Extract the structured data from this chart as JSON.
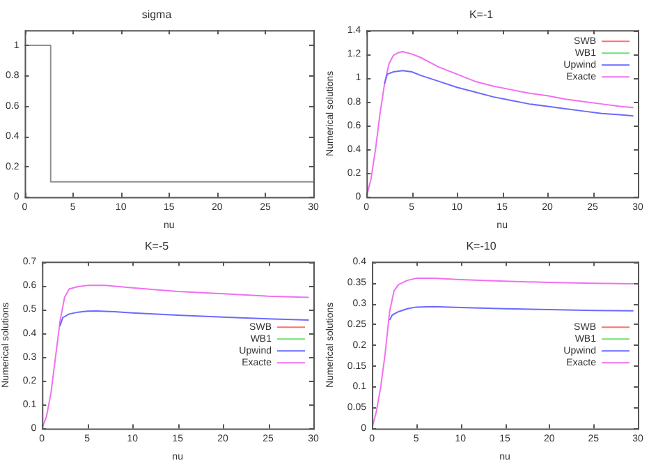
{
  "chart_data": [
    {
      "type": "step",
      "title": "sigma",
      "xlabel": "nu",
      "xlim": [
        0,
        30
      ],
      "xticks": [
        0,
        5,
        10,
        15,
        20,
        25,
        30
      ],
      "ylim": [
        0,
        1.1
      ],
      "yticks": [
        0,
        0.2,
        0.4,
        0.6,
        0.8,
        1
      ],
      "grid": false,
      "legend": false,
      "series": [
        {
          "color": "#909090",
          "x": [
            0,
            2.7,
            30
          ],
          "values": [
            1,
            0.1,
            0.1
          ]
        }
      ]
    },
    {
      "type": "line",
      "title": "K=-1",
      "xlabel": "nu",
      "ylabel": "Numerical solutions",
      "xlim": [
        0,
        30
      ],
      "xticks": [
        0,
        5,
        10,
        15,
        20,
        25,
        30
      ],
      "ylim": [
        0,
        1.4
      ],
      "yticks": [
        0,
        0.2,
        0.4,
        0.6,
        0.8,
        1,
        1.2,
        1.4
      ],
      "grid": false,
      "legend": "top right",
      "series": [
        {
          "name": "SWB",
          "color": "#ff7070"
        },
        {
          "name": "WB1",
          "color": "#70e070"
        },
        {
          "name": "Upwind",
          "color": "#6a6aff",
          "x": [
            2,
            2.3,
            3,
            4,
            5,
            6,
            8,
            10,
            12,
            14,
            16,
            18,
            20,
            22,
            24,
            26,
            28,
            29.5
          ],
          "values": [
            0.95,
            1.03,
            1.05,
            1.06,
            1.05,
            1.02,
            0.97,
            0.92,
            0.88,
            0.84,
            0.81,
            0.78,
            0.76,
            0.74,
            0.72,
            0.7,
            0.69,
            0.68
          ]
        },
        {
          "name": "Exacte",
          "color": "#f070f0",
          "x": [
            0,
            0.5,
            1,
            1.5,
            2,
            2.5,
            3,
            3.5,
            4,
            5,
            6,
            7,
            8,
            10,
            12,
            14,
            16,
            18,
            20,
            22,
            24,
            26,
            28,
            29.5
          ],
          "values": [
            0,
            0.15,
            0.4,
            0.7,
            0.95,
            1.12,
            1.19,
            1.21,
            1.22,
            1.2,
            1.17,
            1.13,
            1.09,
            1.03,
            0.97,
            0.93,
            0.9,
            0.87,
            0.85,
            0.82,
            0.8,
            0.78,
            0.76,
            0.75
          ]
        }
      ]
    },
    {
      "type": "line",
      "title": "K=-5",
      "xlabel": "nu",
      "ylabel": "Numerical solutions",
      "xlim": [
        0,
        30
      ],
      "xticks": [
        0,
        5,
        10,
        15,
        20,
        25,
        30
      ],
      "ylim": [
        0,
        0.7
      ],
      "yticks": [
        0,
        0.1,
        0.2,
        0.3,
        0.4,
        0.5,
        0.6,
        0.7
      ],
      "grid": false,
      "legend": "right",
      "series": [
        {
          "name": "SWB",
          "color": "#ff7070"
        },
        {
          "name": "WB1",
          "color": "#70e070"
        },
        {
          "name": "Upwind",
          "color": "#6a6aff",
          "x": [
            2,
            2.3,
            3,
            4,
            5,
            6,
            8,
            10,
            15,
            20,
            25,
            29.5
          ],
          "values": [
            0.43,
            0.465,
            0.48,
            0.488,
            0.492,
            0.493,
            0.49,
            0.485,
            0.475,
            0.467,
            0.46,
            0.455
          ]
        },
        {
          "name": "Exacte",
          "color": "#f070f0",
          "x": [
            0,
            0.5,
            1,
            1.5,
            2,
            2.5,
            3,
            4,
            5,
            7,
            10,
            15,
            20,
            25,
            29.5
          ],
          "values": [
            0,
            0.05,
            0.15,
            0.3,
            0.45,
            0.55,
            0.585,
            0.595,
            0.6,
            0.6,
            0.59,
            0.575,
            0.565,
            0.555,
            0.55
          ]
        }
      ]
    },
    {
      "type": "line",
      "title": "K=-10",
      "xlabel": "nu",
      "ylabel": "Numerical solutions",
      "xlim": [
        0,
        30
      ],
      "xticks": [
        0,
        5,
        10,
        15,
        20,
        25,
        30
      ],
      "ylim": [
        0,
        0.4
      ],
      "yticks": [
        0,
        0.05,
        0.1,
        0.15,
        0.2,
        0.25,
        0.3,
        0.35,
        0.4
      ],
      "grid": false,
      "legend": "right",
      "series": [
        {
          "name": "SWB",
          "color": "#ff7070"
        },
        {
          "name": "WB1",
          "color": "#70e070"
        },
        {
          "name": "Upwind",
          "color": "#6a6aff",
          "x": [
            2,
            2.3,
            3,
            4,
            5,
            7,
            10,
            15,
            20,
            25,
            29.5
          ],
          "values": [
            0.26,
            0.272,
            0.28,
            0.287,
            0.291,
            0.292,
            0.29,
            0.287,
            0.285,
            0.283,
            0.282
          ]
        },
        {
          "name": "Exacte",
          "color": "#f070f0",
          "x": [
            0,
            0.5,
            1,
            1.5,
            2,
            2.5,
            3,
            4,
            5,
            7,
            10,
            15,
            20,
            25,
            29.5
          ],
          "values": [
            0,
            0.04,
            0.1,
            0.18,
            0.28,
            0.33,
            0.345,
            0.355,
            0.36,
            0.36,
            0.357,
            0.353,
            0.35,
            0.348,
            0.347
          ]
        }
      ]
    }
  ]
}
